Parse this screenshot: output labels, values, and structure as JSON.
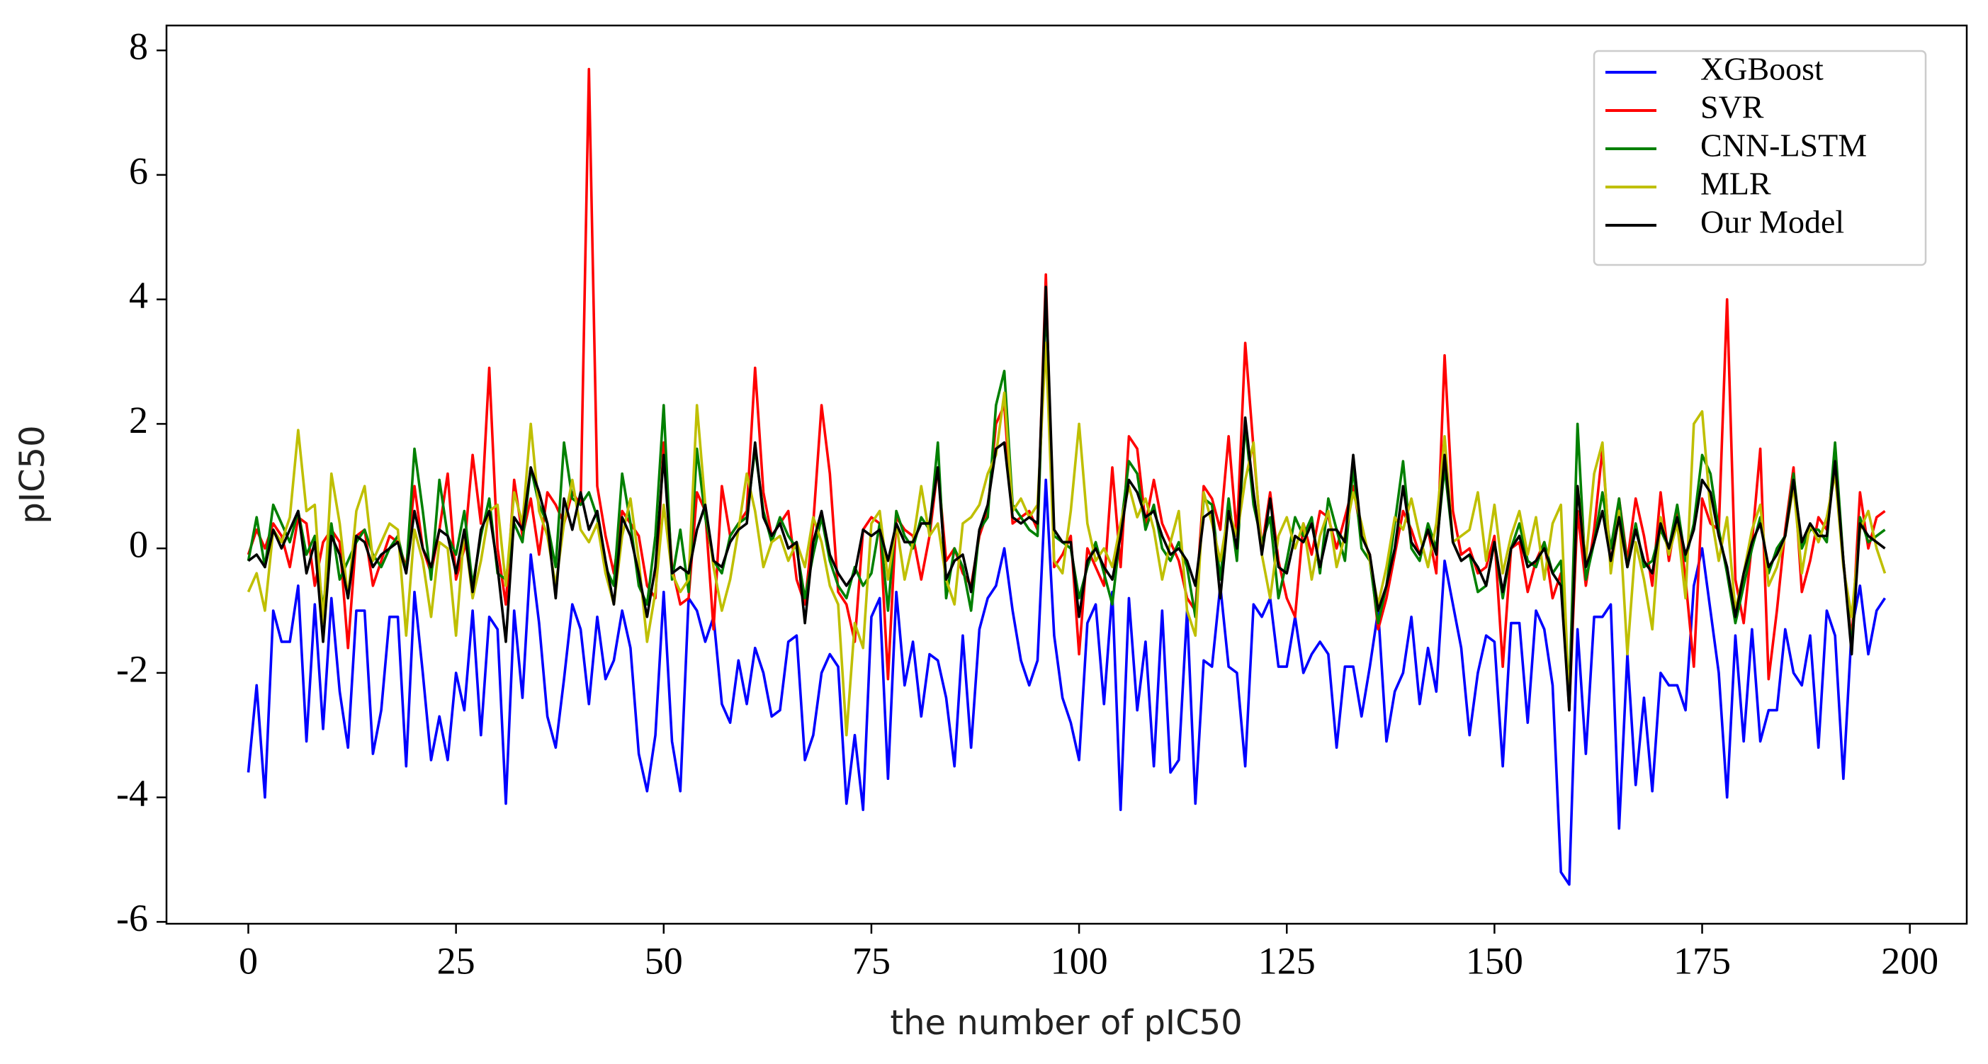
{
  "chart_data": {
    "type": "line",
    "xlabel": "the number of pIC50",
    "ylabel": "pIC50",
    "xlim": [
      -9.85,
      206.85
    ],
    "ylim": [
      -6.03,
      8.4
    ],
    "xticks": [
      0,
      25,
      50,
      75,
      100,
      125,
      150,
      175,
      200
    ],
    "yticks": [
      -6,
      -4,
      -2,
      0,
      2,
      4,
      6,
      8
    ],
    "legend": "upper right",
    "x": [
      0,
      1,
      2,
      3,
      4,
      5,
      6,
      7,
      8,
      9,
      10,
      11,
      12,
      13,
      14,
      15,
      16,
      17,
      18,
      19,
      20,
      21,
      22,
      23,
      24,
      25,
      26,
      27,
      28,
      29,
      30,
      31,
      32,
      33,
      34,
      35,
      36,
      37,
      38,
      39,
      40,
      41,
      42,
      43,
      44,
      45,
      46,
      47,
      48,
      49,
      50,
      51,
      52,
      53,
      54,
      55,
      56,
      57,
      58,
      59,
      60,
      61,
      62,
      63,
      64,
      65,
      66,
      67,
      68,
      69,
      70,
      71,
      72,
      73,
      74,
      75,
      76,
      77,
      78,
      79,
      80,
      81,
      82,
      83,
      84,
      85,
      86,
      87,
      88,
      89,
      90,
      91,
      92,
      93,
      94,
      95,
      96,
      97,
      98,
      99,
      100,
      101,
      102,
      103,
      104,
      105,
      106,
      107,
      108,
      109,
      110,
      111,
      112,
      113,
      114,
      115,
      116,
      117,
      118,
      119,
      120,
      121,
      122,
      123,
      124,
      125,
      126,
      127,
      128,
      129,
      130,
      131,
      132,
      133,
      134,
      135,
      136,
      137,
      138,
      139,
      140,
      141,
      142,
      143,
      144,
      145,
      146,
      147,
      148,
      149,
      150,
      151,
      152,
      153,
      154,
      155,
      156,
      157,
      158,
      159,
      160,
      161,
      162,
      163,
      164,
      165,
      166,
      167,
      168,
      169,
      170,
      171,
      172,
      173,
      174,
      175,
      176,
      177,
      178,
      179,
      180,
      181,
      182,
      183,
      184,
      185,
      186,
      187,
      188,
      189,
      190,
      191,
      192,
      193,
      194,
      195,
      196,
      197
    ],
    "series": [
      {
        "name": "XGBoost",
        "color": "#0000ff",
        "values": [
          -3.6,
          -2.2,
          -4.0,
          -1.0,
          -1.5,
          -1.5,
          -0.6,
          -3.1,
          -0.9,
          -2.9,
          -0.8,
          -2.3,
          -3.2,
          -1.0,
          -1.0,
          -3.3,
          -2.6,
          -1.1,
          -1.1,
          -3.5,
          -0.7,
          -2.0,
          -3.4,
          -2.7,
          -3.4,
          -2.0,
          -2.6,
          -1.0,
          -3.0,
          -1.1,
          -1.3,
          -4.1,
          -1.0,
          -2.4,
          -0.1,
          -1.2,
          -2.7,
          -3.2,
          -2.1,
          -0.9,
          -1.3,
          -2.5,
          -1.1,
          -2.1,
          -1.8,
          -1.0,
          -1.6,
          -3.3,
          -3.9,
          -3.0,
          -0.7,
          -3.1,
          -3.9,
          -0.8,
          -1.0,
          -1.5,
          -1.1,
          -2.5,
          -2.8,
          -1.8,
          -2.5,
          -1.6,
          -2.0,
          -2.7,
          -2.6,
          -1.5,
          -1.4,
          -3.4,
          -3.0,
          -2.0,
          -1.7,
          -1.9,
          -4.1,
          -3.0,
          -4.2,
          -1.1,
          -0.8,
          -3.7,
          -0.7,
          -2.2,
          -1.5,
          -2.7,
          -1.7,
          -1.8,
          -2.4,
          -3.5,
          -1.4,
          -3.2,
          -1.3,
          -0.8,
          -0.6,
          0.0,
          -1.0,
          -1.8,
          -2.2,
          -1.8,
          1.1,
          -1.4,
          -2.4,
          -2.8,
          -3.4,
          -1.2,
          -0.9,
          -2.5,
          -0.7,
          -4.2,
          -0.8,
          -2.6,
          -1.5,
          -3.5,
          -1.0,
          -3.6,
          -3.4,
          -1.0,
          -4.1,
          -1.8,
          -1.9,
          -0.6,
          -1.9,
          -2.0,
          -3.5,
          -0.9,
          -1.1,
          -0.8,
          -1.9,
          -1.9,
          -1.1,
          -2.0,
          -1.7,
          -1.5,
          -1.7,
          -3.2,
          -1.9,
          -1.9,
          -2.7,
          -1.9,
          -1.0,
          -3.1,
          -2.3,
          -2.0,
          -1.1,
          -2.5,
          -1.6,
          -2.3,
          -0.2,
          -0.9,
          -1.6,
          -3.0,
          -2.0,
          -1.4,
          -1.5,
          -3.5,
          -1.2,
          -1.2,
          -2.8,
          -1.0,
          -1.3,
          -2.2,
          -5.2,
          -5.4,
          -1.3,
          -3.3,
          -1.1,
          -1.1,
          -0.9,
          -4.5,
          -1.7,
          -3.8,
          -2.4,
          -3.9,
          -2.0,
          -2.2,
          -2.2,
          -2.6,
          -0.6,
          0.0,
          -1.0,
          -2.0,
          -4.0,
          -1.4,
          -3.1,
          -1.3,
          -3.1,
          -2.6,
          -2.6,
          -1.3,
          -2.0,
          -2.2,
          -1.4,
          -3.2,
          -1.0,
          -1.4,
          -3.7,
          -1.3,
          -0.6,
          -1.7,
          -1.0,
          -0.8
        ]
      },
      {
        "name": "SVR",
        "color": "#ff0000",
        "values": [
          -0.1,
          0.3,
          0.0,
          0.4,
          0.2,
          -0.3,
          0.5,
          0.4,
          -0.6,
          0.1,
          0.3,
          0.1,
          -1.6,
          0.2,
          0.3,
          -0.6,
          -0.2,
          0.2,
          0.1,
          -0.3,
          1.0,
          0.0,
          -0.4,
          0.3,
          1.2,
          -0.5,
          0.0,
          1.5,
          0.4,
          2.9,
          0.0,
          -0.9,
          1.1,
          0.2,
          0.8,
          -0.1,
          0.9,
          0.7,
          0.4,
          0.9,
          0.7,
          7.7,
          1.0,
          0.2,
          -0.4,
          0.6,
          0.4,
          0.2,
          -0.6,
          -0.8,
          1.7,
          -0.3,
          -0.9,
          -0.8,
          0.9,
          0.6,
          -1.3,
          1.0,
          0.2,
          0.4,
          0.6,
          2.9,
          0.9,
          0.2,
          0.4,
          0.6,
          -0.5,
          -0.9,
          0.4,
          2.3,
          1.2,
          -0.7,
          -0.9,
          -1.5,
          0.3,
          0.5,
          0.4,
          -2.1,
          0.5,
          0.3,
          0.2,
          -0.5,
          0.2,
          1.3,
          -0.2,
          0.0,
          -0.4,
          -0.6,
          0.2,
          0.6,
          2.0,
          2.3,
          0.4,
          0.5,
          0.6,
          0.3,
          4.4,
          -0.3,
          -0.1,
          0.2,
          -1.7,
          0.0,
          -0.3,
          -0.6,
          1.3,
          -0.3,
          1.8,
          1.6,
          0.4,
          1.1,
          0.4,
          0.1,
          -0.2,
          -0.8,
          -1.0,
          1.0,
          0.8,
          0.3,
          1.8,
          0.2,
          3.3,
          1.6,
          0.0,
          0.9,
          -0.2,
          -0.8,
          -1.1,
          0.4,
          -0.1,
          0.6,
          0.5,
          0.0,
          0.5,
          1.0,
          0.2,
          -0.1,
          -1.3,
          -0.8,
          -0.1,
          0.6,
          0.3,
          -0.1,
          0.3,
          -0.4,
          3.1,
          0.6,
          -0.1,
          0.0,
          -0.4,
          -0.3,
          0.2,
          -1.9,
          0.0,
          0.1,
          -0.7,
          -0.2,
          0.1,
          -0.8,
          -0.4,
          -2.6,
          0.6,
          -0.6,
          0.3,
          1.6,
          -0.3,
          0.8,
          -0.2,
          0.8,
          0.2,
          -0.6,
          0.9,
          -0.2,
          0.6,
          -0.5,
          -1.9,
          0.8,
          0.4,
          0.3,
          4.0,
          -0.5,
          -1.2,
          0.1,
          1.6,
          -2.1,
          -1.0,
          0.3,
          1.3,
          -0.7,
          -0.2,
          0.5,
          0.3,
          1.5,
          -0.2,
          -1.5,
          0.9,
          0.0,
          0.5,
          0.6
        ]
      },
      {
        "name": "CNN-LSTM",
        "color": "#008000",
        "values": [
          -0.2,
          0.5,
          -0.3,
          0.7,
          0.4,
          0.1,
          0.6,
          -0.1,
          0.2,
          -1.0,
          0.4,
          -0.5,
          -0.2,
          0.1,
          0.3,
          -0.1,
          -0.3,
          0.0,
          0.2,
          -0.4,
          1.6,
          0.6,
          -0.5,
          1.1,
          0.2,
          -0.1,
          0.6,
          -0.6,
          0.2,
          0.8,
          -0.4,
          -0.5,
          0.4,
          0.1,
          1.3,
          0.7,
          0.4,
          -0.3,
          1.7,
          0.8,
          0.7,
          0.9,
          0.5,
          -0.3,
          -0.6,
          1.2,
          0.4,
          -0.6,
          -0.9,
          0.2,
          2.3,
          -0.5,
          0.3,
          -0.7,
          1.6,
          0.5,
          -0.2,
          -0.4,
          0.2,
          0.4,
          0.5,
          1.6,
          0.6,
          0.1,
          0.5,
          0.2,
          0.0,
          -0.8,
          -0.1,
          0.5,
          -0.2,
          -0.6,
          -0.8,
          -0.3,
          -0.6,
          -0.4,
          0.4,
          -1.0,
          0.6,
          0.2,
          0.0,
          0.5,
          0.3,
          1.7,
          -0.8,
          0.0,
          -0.3,
          -1.0,
          0.3,
          0.5,
          2.3,
          2.85,
          0.7,
          0.5,
          0.3,
          0.2,
          4.0,
          0.2,
          0.1,
          0.0,
          -0.8,
          -0.3,
          0.1,
          -0.4,
          -0.9,
          0.3,
          1.4,
          1.2,
          0.3,
          0.7,
          0.0,
          -0.2,
          0.1,
          -0.3,
          -1.1,
          0.8,
          0.7,
          -0.5,
          0.8,
          -0.2,
          2.0,
          0.7,
          0.1,
          0.5,
          -0.8,
          -0.2,
          0.5,
          0.2,
          0.5,
          -0.4,
          0.8,
          0.3,
          -0.2,
          1.3,
          0.0,
          -0.2,
          -1.2,
          -0.6,
          0.4,
          1.4,
          0.0,
          -0.2,
          0.4,
          0.0,
          1.3,
          0.1,
          -0.2,
          -0.1,
          -0.7,
          -0.6,
          0.1,
          -0.8,
          0.0,
          0.4,
          -0.2,
          -0.3,
          0.1,
          -0.4,
          -0.2,
          -2.4,
          2.0,
          -0.5,
          0.1,
          0.9,
          0.0,
          0.8,
          -0.3,
          0.4,
          -0.3,
          -0.2,
          0.3,
          0.0,
          0.7,
          -0.2,
          0.4,
          1.5,
          1.2,
          0.3,
          -0.4,
          -1.2,
          -0.6,
          0.0,
          0.5,
          -0.4,
          0.0,
          0.2,
          1.2,
          0.0,
          0.3,
          0.3,
          0.1,
          1.7,
          -0.2,
          -1.6,
          0.5,
          0.1,
          0.2,
          0.3
        ]
      },
      {
        "name": "MLR",
        "color": "#bfbf00",
        "values": [
          -0.7,
          -0.4,
          -1.0,
          0.3,
          0.1,
          0.5,
          1.9,
          0.6,
          0.7,
          -1.2,
          1.2,
          0.4,
          -0.8,
          0.6,
          1.0,
          -0.2,
          0.1,
          0.4,
          0.3,
          -1.4,
          0.3,
          -0.2,
          -1.1,
          0.1,
          0.0,
          -1.4,
          0.3,
          -0.8,
          -0.2,
          0.6,
          0.7,
          -0.6,
          0.9,
          0.4,
          2.0,
          0.6,
          0.2,
          -0.6,
          0.4,
          1.1,
          0.3,
          0.1,
          0.4,
          -0.4,
          -0.9,
          0.2,
          0.8,
          -0.2,
          -1.5,
          -0.7,
          0.7,
          -0.4,
          -0.7,
          -0.5,
          2.3,
          0.7,
          -0.3,
          -1.0,
          -0.5,
          0.3,
          1.2,
          0.6,
          -0.3,
          0.1,
          0.2,
          -0.2,
          0.1,
          -0.3,
          0.5,
          0.1,
          -0.6,
          -0.9,
          -3.0,
          -1.2,
          -1.6,
          0.4,
          0.6,
          -0.5,
          0.4,
          -0.5,
          0.1,
          1.0,
          0.2,
          0.4,
          -0.5,
          -0.9,
          0.4,
          0.5,
          0.7,
          1.2,
          1.5,
          2.5,
          0.6,
          0.8,
          0.5,
          0.7,
          3.3,
          -0.2,
          -0.4,
          0.6,
          2.0,
          0.4,
          -0.2,
          0.0,
          -0.3,
          0.4,
          1.0,
          0.5,
          0.8,
          0.3,
          -0.5,
          0.1,
          0.6,
          -1.0,
          -1.4,
          0.9,
          0.4,
          -0.2,
          0.6,
          0.2,
          1.1,
          1.7,
          -0.1,
          -0.8,
          0.2,
          0.5,
          0.0,
          0.4,
          -0.5,
          0.2,
          0.6,
          -0.3,
          0.2,
          0.9,
          0.4,
          -0.2,
          -0.9,
          -0.3,
          0.5,
          0.3,
          0.8,
          0.2,
          -0.3,
          0.4,
          1.8,
          0.1,
          0.2,
          0.3,
          0.9,
          -0.2,
          0.7,
          -0.4,
          0.2,
          0.6,
          -0.1,
          0.5,
          -0.5,
          0.4,
          0.7,
          -2.5,
          1.0,
          -0.2,
          1.2,
          1.7,
          -0.4,
          0.6,
          -1.7,
          0.1,
          -0.5,
          -1.3,
          0.5,
          -0.1,
          0.4,
          -0.8,
          2.0,
          2.2,
          0.6,
          -0.2,
          0.5,
          -1.0,
          -0.4,
          0.3,
          0.7,
          -0.6,
          -0.3,
          0.2,
          1.0,
          -0.4,
          0.4,
          0.1,
          0.5,
          1.2,
          -0.3,
          -1.1,
          0.3,
          0.6,
          0.0,
          -0.4
        ]
      },
      {
        "name": "Our Model",
        "color": "#000000",
        "values": [
          -0.2,
          -0.1,
          -0.3,
          0.3,
          0.0,
          0.3,
          0.6,
          -0.4,
          0.1,
          -1.5,
          0.2,
          -0.1,
          -0.8,
          0.2,
          0.1,
          -0.3,
          -0.1,
          0.0,
          0.1,
          -0.4,
          0.6,
          0.0,
          -0.3,
          0.3,
          0.2,
          -0.4,
          0.3,
          -0.7,
          0.3,
          0.6,
          -0.3,
          -1.5,
          0.5,
          0.3,
          1.3,
          0.9,
          0.4,
          -0.8,
          0.8,
          0.3,
          0.9,
          0.3,
          0.6,
          -0.2,
          -0.9,
          0.5,
          0.2,
          -0.4,
          -1.1,
          -0.3,
          1.5,
          -0.4,
          -0.3,
          -0.4,
          0.3,
          0.7,
          -0.2,
          -0.3,
          0.1,
          0.3,
          0.4,
          1.7,
          0.5,
          0.2,
          0.4,
          0.0,
          0.1,
          -1.2,
          0.1,
          0.6,
          -0.1,
          -0.4,
          -0.6,
          -0.4,
          0.3,
          0.2,
          0.3,
          -0.2,
          0.4,
          0.1,
          0.1,
          0.4,
          0.4,
          1.3,
          -0.5,
          -0.2,
          -0.1,
          -0.7,
          0.3,
          0.7,
          1.6,
          1.7,
          0.5,
          0.4,
          0.5,
          0.4,
          4.2,
          0.3,
          0.1,
          0.1,
          -1.1,
          -0.2,
          0.0,
          -0.3,
          -0.5,
          0.2,
          1.1,
          0.9,
          0.5,
          0.6,
          0.2,
          -0.1,
          0.0,
          -0.2,
          -0.6,
          0.5,
          0.6,
          -0.8,
          0.6,
          0.0,
          2.1,
          0.9,
          -0.1,
          0.8,
          -0.3,
          -0.4,
          0.2,
          0.1,
          0.4,
          -0.3,
          0.3,
          0.3,
          0.1,
          1.5,
          0.2,
          -0.1,
          -1.0,
          -0.6,
          0.0,
          1.0,
          0.1,
          -0.1,
          0.3,
          -0.1,
          1.5,
          0.1,
          -0.2,
          -0.1,
          -0.3,
          -0.6,
          0.1,
          -0.7,
          0.0,
          0.2,
          -0.3,
          -0.2,
          0.0,
          -0.4,
          -0.6,
          -2.6,
          1.0,
          -0.3,
          0.1,
          0.6,
          -0.2,
          0.5,
          -0.3,
          0.3,
          -0.2,
          -0.4,
          0.4,
          0.0,
          0.5,
          -0.1,
          0.3,
          1.1,
          0.9,
          0.2,
          -0.3,
          -1.1,
          -0.4,
          0.1,
          0.4,
          -0.3,
          -0.1,
          0.2,
          1.1,
          0.1,
          0.4,
          0.2,
          0.2,
          1.4,
          -0.2,
          -1.7,
          0.4,
          0.2,
          0.1,
          0.0
        ]
      }
    ]
  }
}
